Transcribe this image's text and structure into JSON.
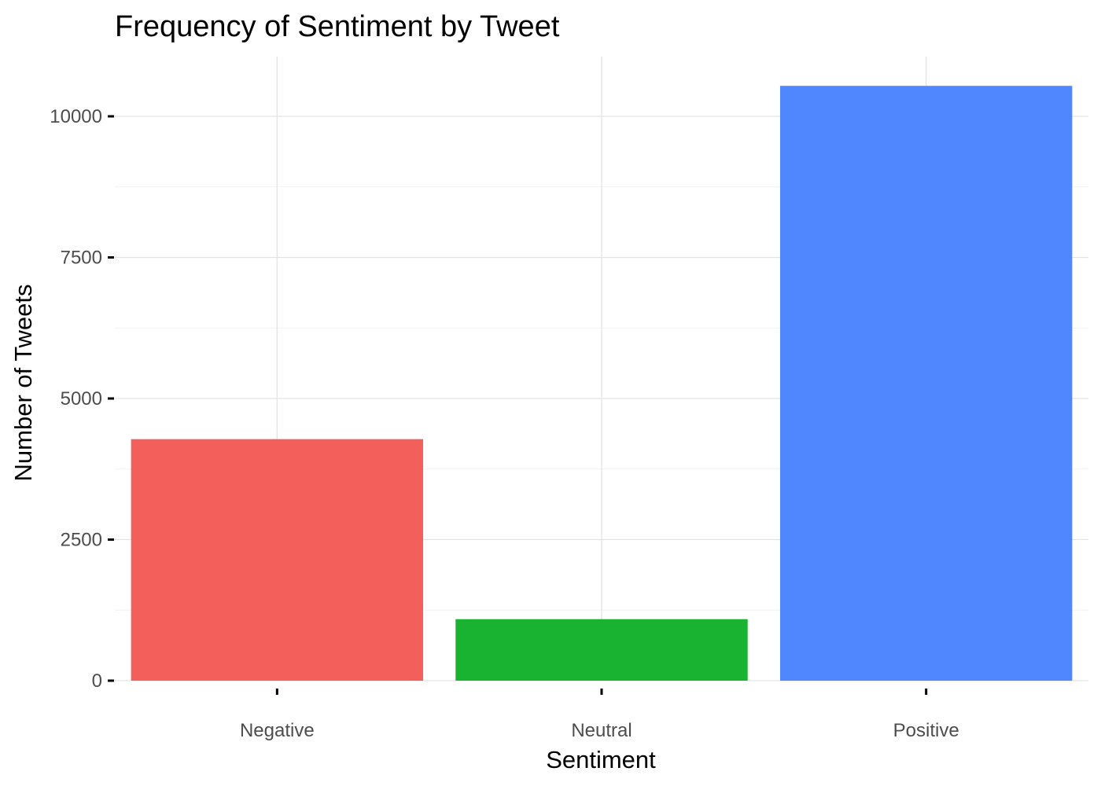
{
  "chart_data": {
    "type": "bar",
    "title": "Frequency of Sentiment by Tweet",
    "xlabel": "Sentiment",
    "ylabel": "Number of Tweets",
    "categories": [
      "Negative",
      "Neutral",
      "Positive"
    ],
    "values": [
      4280,
      1090,
      10540
    ],
    "colors": [
      "#F3605C",
      "#19B231",
      "#5087FF"
    ],
    "ylim": [
      0,
      11000
    ],
    "y_ticks": [
      0,
      2500,
      5000,
      7500,
      10000
    ],
    "y_tick_labels": [
      "0",
      "2500",
      "5000",
      "7500",
      "10000"
    ],
    "y_minor_ticks": [
      1250,
      3750,
      6250,
      8750
    ],
    "grid": true,
    "legend": "none"
  }
}
